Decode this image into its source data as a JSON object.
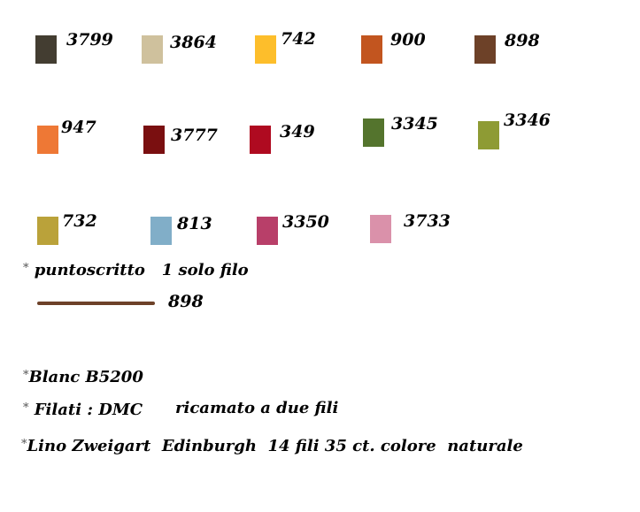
{
  "swatches": [
    {
      "code": "3799",
      "color": "#433d31"
    },
    {
      "code": "3864",
      "color": "#cfc19d"
    },
    {
      "code": "742",
      "color": "#fdbe2b"
    },
    {
      "code": "900",
      "color": "#c2551f"
    },
    {
      "code": "898",
      "color": "#6d4128"
    },
    {
      "code": "947",
      "color": "#ee7835"
    },
    {
      "code": "3777",
      "color": "#7a0f10"
    },
    {
      "code": "349",
      "color": "#af0a20"
    },
    {
      "code": "3345",
      "color": "#54742d"
    },
    {
      "code": "3346",
      "color": "#8e9b34"
    },
    {
      "code": "732",
      "color": "#baa23a"
    },
    {
      "code": "813",
      "color": "#81aec8"
    },
    {
      "code": "3350",
      "color": "#b83f69"
    },
    {
      "code": "3733",
      "color": "#da91aa"
    }
  ],
  "notes": {
    "star": "*",
    "backstitch": "puntoscritto   1 solo filo",
    "backstitch_code": "898",
    "backstitch_color": "#6d4129",
    "blanc": "Blanc B5200",
    "threads": "Filati : DMC",
    "threads_note": "ricamato a due fili",
    "fabric": "Lino Zweigart  Edinburgh  14 fili 35 ct. colore  naturale"
  }
}
